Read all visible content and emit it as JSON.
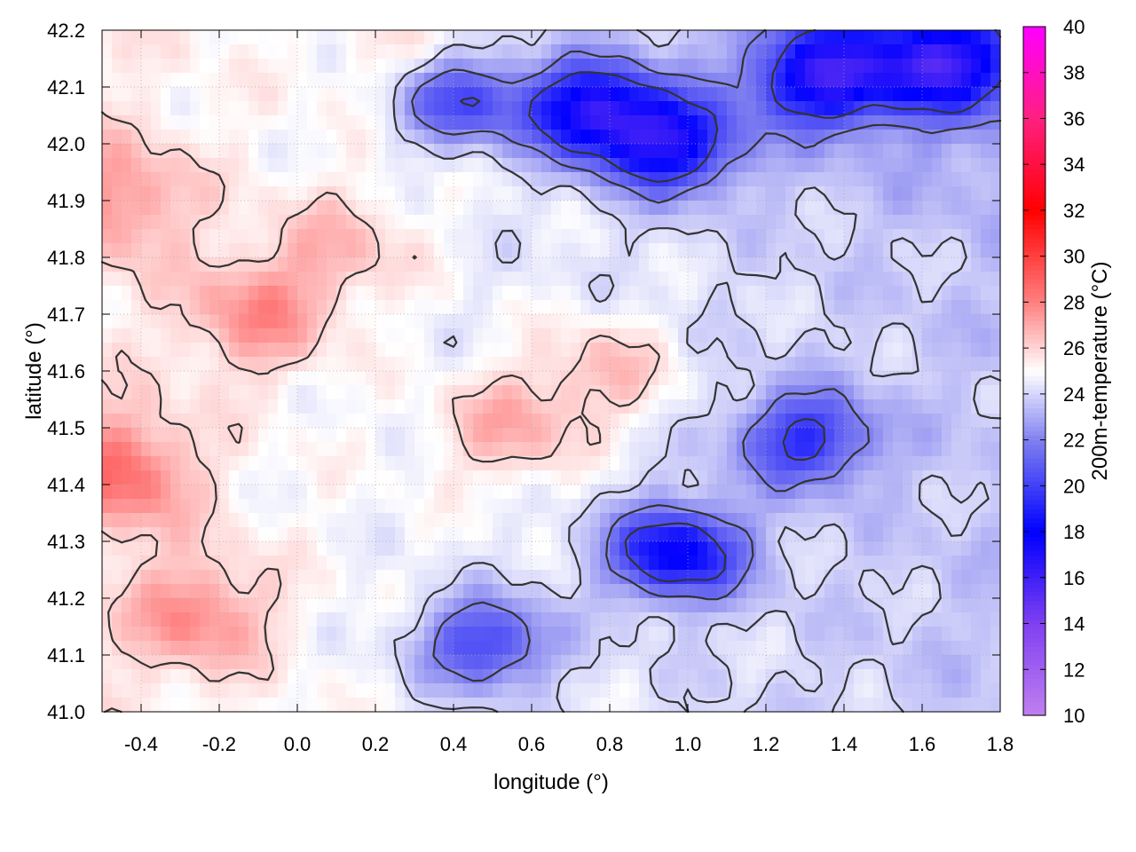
{
  "chart_data": {
    "type": "heatmap",
    "title": "",
    "xlabel": "longitude (°)",
    "ylabel": "latitude (°)",
    "colorbar_label": "200m-temperature (°C)",
    "xlim": [
      -0.5,
      1.8
    ],
    "ylim": [
      41.0,
      42.2
    ],
    "zlim": [
      10,
      40
    ],
    "x_ticks": [
      "-0.4",
      "-0.2",
      "0.0",
      "0.2",
      "0.4",
      "0.6",
      "0.8",
      "1.0",
      "1.2",
      "1.4",
      "1.6",
      "1.8"
    ],
    "x_tick_values": [
      -0.4,
      -0.2,
      0.0,
      0.2,
      0.4,
      0.6,
      0.8,
      1.0,
      1.2,
      1.4,
      1.6,
      1.8
    ],
    "y_ticks": [
      "41.0",
      "41.1",
      "41.2",
      "41.3",
      "41.4",
      "41.5",
      "41.6",
      "41.7",
      "41.8",
      "41.9",
      "42.0",
      "42.1",
      "42.2"
    ],
    "y_tick_values": [
      41.0,
      41.1,
      41.2,
      41.3,
      41.4,
      41.5,
      41.6,
      41.7,
      41.8,
      41.9,
      42.0,
      42.1,
      42.2
    ],
    "colorbar_ticks": [
      "10",
      "12",
      "14",
      "16",
      "18",
      "20",
      "22",
      "24",
      "26",
      "28",
      "30",
      "32",
      "34",
      "36",
      "38",
      "40"
    ],
    "colorbar_tick_values": [
      10,
      12,
      14,
      16,
      18,
      20,
      22,
      24,
      26,
      28,
      30,
      32,
      34,
      36,
      38,
      40
    ],
    "colormap_stops": [
      {
        "value": 10,
        "color": "#c080f0"
      },
      {
        "value": 14,
        "color": "#8040f0"
      },
      {
        "value": 18,
        "color": "#0000ff"
      },
      {
        "value": 22,
        "color": "#8080f0"
      },
      {
        "value": 25,
        "color": "#ffffff"
      },
      {
        "value": 28,
        "color": "#ff8080"
      },
      {
        "value": 32,
        "color": "#ff0000"
      },
      {
        "value": 36,
        "color": "#ff2080"
      },
      {
        "value": 40,
        "color": "#ff00ff"
      }
    ],
    "grid": true,
    "contours": true,
    "warm_centers": [
      {
        "lon": -0.45,
        "lat": 41.9,
        "value": 26.5
      },
      {
        "lon": -0.1,
        "lat": 41.7,
        "value": 26.8
      },
      {
        "lon": -0.45,
        "lat": 41.42,
        "value": 27.5
      },
      {
        "lon": -0.25,
        "lat": 41.17,
        "value": 26.8
      },
      {
        "lon": 0.55,
        "lat": 41.5,
        "value": 26.5
      },
      {
        "lon": 0.8,
        "lat": 41.6,
        "value": 26.2
      },
      {
        "lon": 0.12,
        "lat": 41.82,
        "value": 25.8
      },
      {
        "lon": 0.3,
        "lat": 42.12,
        "value": 25.8
      }
    ],
    "cool_centers": [
      {
        "lon": 0.97,
        "lat": 41.28,
        "value": 17.5
      },
      {
        "lon": 0.75,
        "lat": 42.06,
        "value": 17.0
      },
      {
        "lon": 0.4,
        "lat": 42.08,
        "value": 19.0
      },
      {
        "lon": 1.35,
        "lat": 42.12,
        "value": 17.0
      },
      {
        "lon": 1.65,
        "lat": 42.14,
        "value": 17.5
      },
      {
        "lon": 1.3,
        "lat": 41.48,
        "value": 19.5
      },
      {
        "lon": 0.48,
        "lat": 41.12,
        "value": 19.5
      },
      {
        "lon": 0.95,
        "lat": 42.0,
        "value": 17.5
      }
    ]
  }
}
